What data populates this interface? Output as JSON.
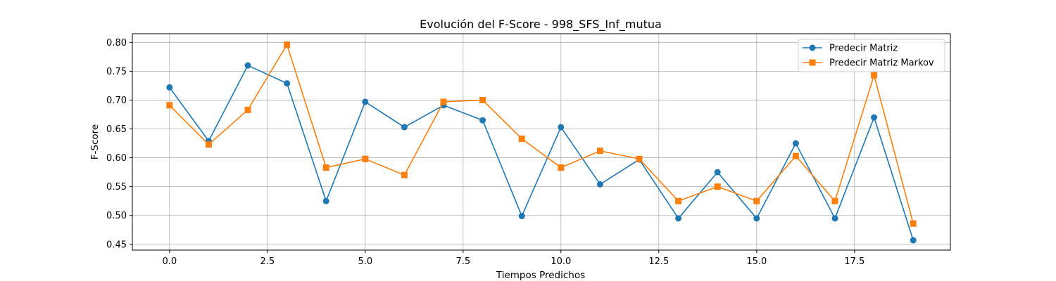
{
  "chart_data": {
    "type": "line",
    "title": "Evolución del F-Score - 998_SFS_Inf_mutua",
    "xlabel": "Tiempos Predichos",
    "ylabel": "F-Score",
    "xlim": [
      -0.95,
      19.95
    ],
    "ylim": [
      0.44,
      0.815
    ],
    "x_ticks": [
      0.0,
      2.5,
      5.0,
      7.5,
      10.0,
      12.5,
      15.0,
      17.5
    ],
    "x_tick_labels": [
      "0.0",
      "2.5",
      "5.0",
      "7.5",
      "10.0",
      "12.5",
      "15.0",
      "17.5"
    ],
    "y_ticks": [
      0.45,
      0.5,
      0.55,
      0.6,
      0.65,
      0.7,
      0.75,
      0.8
    ],
    "y_tick_labels": [
      "0.45",
      "0.50",
      "0.55",
      "0.60",
      "0.65",
      "0.70",
      "0.75",
      "0.80"
    ],
    "grid": true,
    "legend_position": "top-right",
    "x": [
      0,
      1,
      2,
      3,
      4,
      5,
      6,
      7,
      8,
      9,
      10,
      11,
      12,
      13,
      14,
      15,
      16,
      17,
      18,
      19
    ],
    "series": [
      {
        "name": "Predecir Matriz",
        "color": "#1f77b4",
        "marker": "circle",
        "values": [
          0.722,
          0.629,
          0.76,
          0.729,
          0.525,
          0.697,
          0.653,
          0.691,
          0.665,
          0.499,
          0.653,
          0.554,
          0.597,
          0.495,
          0.575,
          0.495,
          0.625,
          0.495,
          0.67,
          0.457
        ]
      },
      {
        "name": "Predecir Matriz Markov",
        "color": "#ff7f0e",
        "marker": "square",
        "values": [
          0.691,
          0.623,
          0.683,
          0.796,
          0.583,
          0.598,
          0.57,
          0.697,
          0.7,
          0.633,
          0.583,
          0.612,
          0.598,
          0.525,
          0.55,
          0.525,
          0.603,
          0.525,
          0.743,
          0.486
        ]
      }
    ]
  }
}
